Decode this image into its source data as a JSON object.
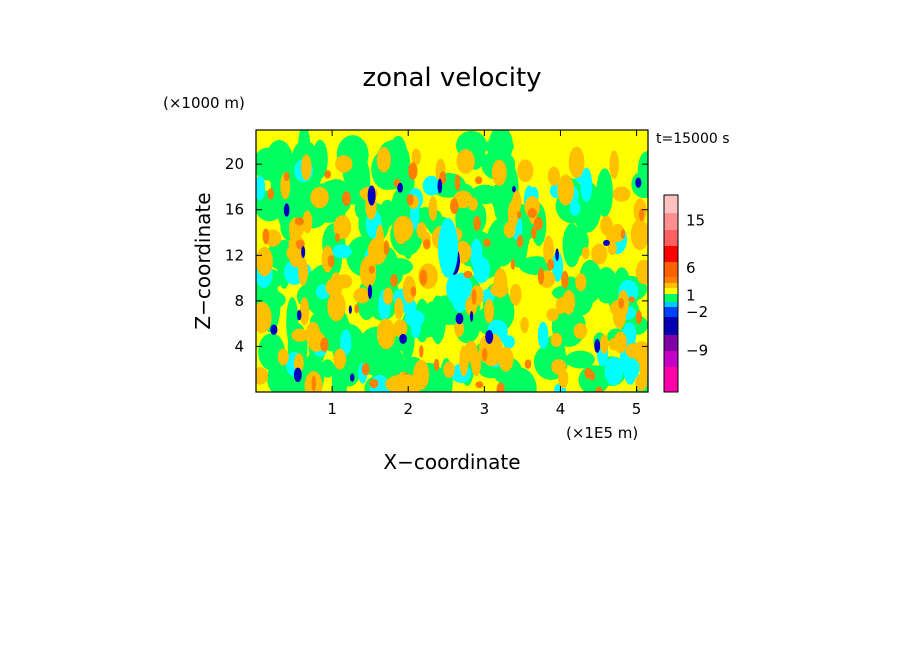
{
  "chart_data": {
    "type": "heatmap",
    "title": "zonal velocity",
    "xlabel": "X−coordinate",
    "ylabel": "Z−coordinate",
    "x_unit": "(×1E5 m)",
    "y_unit": "(×1000 m)",
    "time_label": "t=15000 s",
    "xlim": [
      0,
      5.15
    ],
    "ylim": [
      0,
      23
    ],
    "x_ticks": [
      "1",
      "2",
      "3",
      "4",
      "5"
    ],
    "y_ticks": [
      "4",
      "8",
      "12",
      "16",
      "20"
    ],
    "colorbar": {
      "tick_labels": [
        "15",
        "6",
        "1",
        "−2",
        "−9"
      ],
      "levels": [
        {
          "color": "#ff00a8"
        },
        {
          "color": "#c400c4"
        },
        {
          "color": "#8000a8"
        },
        {
          "color": "#0000b0"
        },
        {
          "color": "#0040ff"
        },
        {
          "color": "#00c8ff"
        },
        {
          "color": "#00ff60"
        },
        {
          "color": "#ffff00"
        },
        {
          "color": "#ffc000"
        },
        {
          "color": "#ff8000"
        },
        {
          "color": "#ff6000"
        },
        {
          "color": "#ff0000"
        },
        {
          "color": "#ff6060"
        },
        {
          "color": "#ff9090"
        },
        {
          "color": "#ffc0c0"
        }
      ]
    },
    "field_colors": {
      "background": "#ffff00",
      "band_top": "#ffff00",
      "green": "#00ff60",
      "cyan": "#00ffff",
      "orange": "#ffc000",
      "red_orange": "#ff8000",
      "blue": "#0000c0"
    }
  }
}
